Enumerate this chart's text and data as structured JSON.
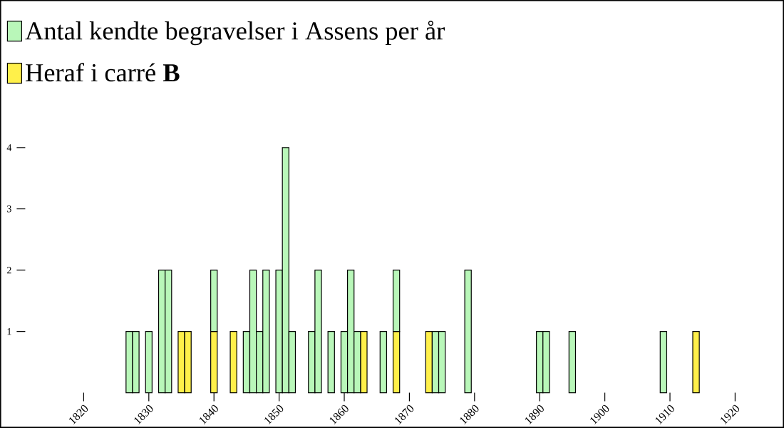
{
  "chart_data": {
    "type": "bar",
    "stacked": true,
    "legend": "top left",
    "grid": false,
    "xlim": [
      1820,
      1920
    ],
    "xticks": [
      1820,
      1830,
      1840,
      1850,
      1860,
      1870,
      1880,
      1890,
      1900,
      1910,
      1920
    ],
    "ylim": [
      0,
      6.4
    ],
    "yticks": [
      1,
      2,
      3,
      4
    ],
    "x": [
      1827,
      1828,
      1830,
      1832,
      1833,
      1835,
      1836,
      1840,
      1843,
      1845,
      1846,
      1847,
      1848,
      1850,
      1851,
      1852,
      1855,
      1856,
      1858,
      1860,
      1861,
      1862,
      1863,
      1866,
      1868,
      1873,
      1874,
      1875,
      1879,
      1890,
      1891,
      1895,
      1909,
      1914
    ],
    "series": [
      {
        "name": "Heraf i carré **B**",
        "color": "#fff04a",
        "values": [
          null,
          null,
          null,
          null,
          null,
          1,
          1,
          1,
          1,
          null,
          null,
          null,
          null,
          null,
          null,
          null,
          null,
          null,
          null,
          null,
          null,
          null,
          1,
          null,
          1,
          1,
          null,
          null,
          null,
          null,
          null,
          null,
          null,
          1
        ]
      },
      {
        "name": "Antal kendte begravelser i Assens per år",
        "color": "#b9f7b9",
        "values": [
          1,
          1,
          1,
          2,
          2,
          null,
          null,
          1,
          null,
          1,
          2,
          1,
          2,
          2,
          4,
          1,
          1,
          2,
          1,
          1,
          2,
          1,
          null,
          1,
          1,
          null,
          1,
          1,
          2,
          1,
          1,
          1,
          1,
          null
        ]
      }
    ]
  }
}
